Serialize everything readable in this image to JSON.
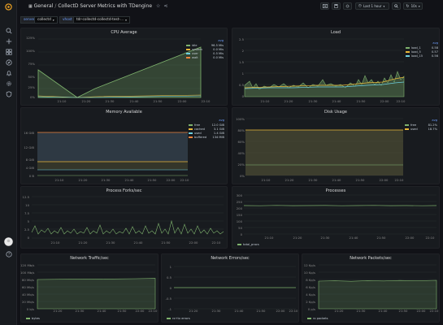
{
  "header": {
    "home": "General",
    "title": "CollectD Server Metrics with TDengine"
  },
  "toolbar": {
    "time_range": "Last 1 hour",
    "refresh": "10s"
  },
  "variables": [
    {
      "label": "server",
      "value": "collectd"
    },
    {
      "label": "vhost",
      "value": "tdr-collectd-collectd-test-..."
    }
  ],
  "colors": {
    "green": "#7eb26d",
    "yellow": "#eab839",
    "blue": "#6ed0e0",
    "orange": "#ef843c",
    "red": "#e24d42",
    "panel_bg": "#181b1f"
  },
  "icons": [
    "grafana-logo-icon",
    "search-icon",
    "add-icon",
    "dashboards-icon",
    "explore-icon",
    "alerting-icon",
    "config-icon",
    "shield-icon",
    "avatar",
    "help-icon"
  ],
  "panels": {
    "cpu": {
      "title": "CPU Average",
      "yticks": [
        "125%",
        "100%",
        "75%",
        "50%",
        "25%",
        "0%"
      ],
      "xticks": [
        "21:10",
        "21:20",
        "21:30",
        "21:40",
        "21:50",
        "22:00",
        "22:10"
      ],
      "legend_head": "avg",
      "legend": [
        {
          "name": "idle",
          "value": "96.5 Mis",
          "color": "#7eb26d"
        },
        {
          "name": "system",
          "value": "0.0 Mis",
          "color": "#eab839"
        },
        {
          "name": "user",
          "value": "0.5 Mis",
          "color": "#6ed0e0"
        },
        {
          "name": "wait",
          "value": "0.0 Mis",
          "color": "#ef843c"
        }
      ]
    },
    "load": {
      "title": "Load",
      "yticks": [
        "2.5",
        "2",
        "1.5",
        "1",
        "0.5",
        "0"
      ],
      "xticks": [
        "21:10",
        "21:20",
        "21:30",
        "21:40",
        "21:50",
        "22:00",
        "22:10"
      ],
      "legend_head": "avg",
      "legend": [
        {
          "name": "load_1",
          "value": "0.58",
          "color": "#7eb26d"
        },
        {
          "name": "load_5",
          "value": "0.57",
          "color": "#eab839"
        },
        {
          "name": "load_15",
          "value": "0.56",
          "color": "#6ed0e0"
        }
      ]
    },
    "memory": {
      "title": "Memory Available",
      "yticks": [
        "16 GiB",
        "12 GiB",
        "8 GiB",
        "4 GiB",
        "0 B"
      ],
      "xticks": [
        "21:10",
        "21:20",
        "21:30",
        "21:40",
        "21:50",
        "22:00",
        "22:10"
      ],
      "legend_head": "avg",
      "legend": [
        {
          "name": "free",
          "value": "12.0 GiB",
          "color": "#7eb26d"
        },
        {
          "name": "cached",
          "value": "3.1 GiB",
          "color": "#eab839"
        },
        {
          "name": "used",
          "value": "1.4 GiB",
          "color": "#6ed0e0"
        },
        {
          "name": "buffered",
          "value": "134 MiB",
          "color": "#ef843c"
        }
      ]
    },
    "disk": {
      "title": "Disk Usage",
      "yticks": [
        "100%",
        "80%",
        "60%",
        "40%",
        "20%",
        "0%"
      ],
      "xticks": [
        "21:10",
        "21:20",
        "21:30",
        "21:40",
        "21:50",
        "22:00",
        "22:10"
      ],
      "legend_head": "avg",
      "legend": [
        {
          "name": "free",
          "value": "81.2%",
          "color": "#7eb26d"
        },
        {
          "name": "used",
          "value": "18.7%",
          "color": "#eab839"
        }
      ]
    },
    "process_forks": {
      "title": "Process Forks/sec",
      "yticks": [
        "12.5",
        "10",
        "7.5",
        "5",
        "2.5",
        "0"
      ],
      "xticks": [
        "21:10",
        "21:20",
        "21:30",
        "21:40",
        "21:50",
        "22:00",
        "22:10"
      ],
      "legend": [
        {
          "name": "forks",
          "color": "#7eb26d"
        }
      ]
    },
    "processes": {
      "title": "Processes",
      "yticks": [
        "300",
        "250",
        "200",
        "150",
        "100",
        "50",
        "0"
      ],
      "xticks": [
        "21:10",
        "21:20",
        "21:30",
        "21:40",
        "21:50",
        "22:00",
        "22:10"
      ],
      "legend": [
        {
          "name": "total_procs",
          "color": "#7eb26d"
        }
      ]
    },
    "net_traffic": {
      "title": "Network Traffic/sec",
      "yticks": [
        "120 Mb/s",
        "100 Mb/s",
        "80 Mb/s",
        "60 Mb/s",
        "40 Mb/s",
        "20 Mb/s",
        "0 b/s"
      ],
      "xticks": [
        "21:20",
        "21:30",
        "21:40",
        "21:50",
        "22:00",
        "22:10"
      ],
      "legend": [
        {
          "name": "bytes",
          "color": "#7eb26d"
        }
      ]
    },
    "net_errors": {
      "title": "Network Errors/sec",
      "yticks": [
        "1",
        "0.5",
        "0",
        "-0.5",
        "-1"
      ],
      "xticks": [
        "21:20",
        "21:30",
        "21:40",
        "21:50",
        "22:00",
        "22:10"
      ],
      "legend": [
        {
          "name": "rx+tx errors",
          "color": "#7eb26d"
        }
      ]
    },
    "net_packets": {
      "title": "Network Packets/sec",
      "yticks": [
        "12 Kp/s",
        "10 Kp/s",
        "8 Kp/s",
        "6 Kp/s",
        "4 Kp/s",
        "2 Kp/s",
        "0 p/s"
      ],
      "xticks": [
        "21:20",
        "21:30",
        "21:40",
        "21:50",
        "22:00",
        "22:10"
      ],
      "legend": [
        {
          "name": "rx packets",
          "color": "#7eb26d"
        }
      ]
    }
  }
}
